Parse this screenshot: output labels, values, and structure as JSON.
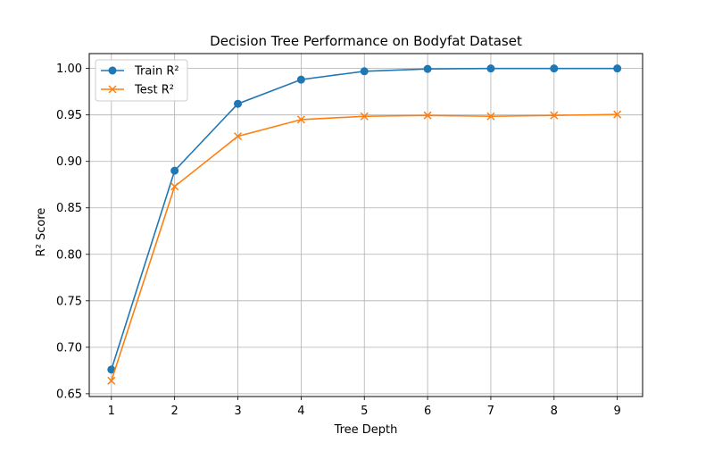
{
  "chart_data": {
    "type": "line",
    "title": "Decision Tree Performance on Bodyfat Dataset",
    "xlabel": "Tree Depth",
    "ylabel": "R² Score",
    "x": [
      1,
      2,
      3,
      4,
      5,
      6,
      7,
      8,
      9
    ],
    "xticks": [
      "1",
      "2",
      "3",
      "4",
      "5",
      "6",
      "7",
      "8",
      "9"
    ],
    "yticks": [
      "0.65",
      "0.70",
      "0.75",
      "0.80",
      "0.85",
      "0.90",
      "0.95",
      "1.00"
    ],
    "ylim": [
      0.647,
      1.016
    ],
    "xlim": [
      0.65,
      9.4
    ],
    "grid": true,
    "legend_position": "upper-left",
    "series": [
      {
        "name": "Train R²",
        "color": "#1f77b4",
        "marker": "circle",
        "values": [
          0.676,
          0.89,
          0.962,
          0.988,
          0.997,
          0.9995,
          1.0,
          1.0,
          1.0
        ]
      },
      {
        "name": "Test R²",
        "color": "#ff7f0e",
        "marker": "x",
        "values": [
          0.664,
          0.873,
          0.927,
          0.945,
          0.9485,
          0.9495,
          0.9485,
          0.9495,
          0.9505
        ]
      }
    ]
  }
}
